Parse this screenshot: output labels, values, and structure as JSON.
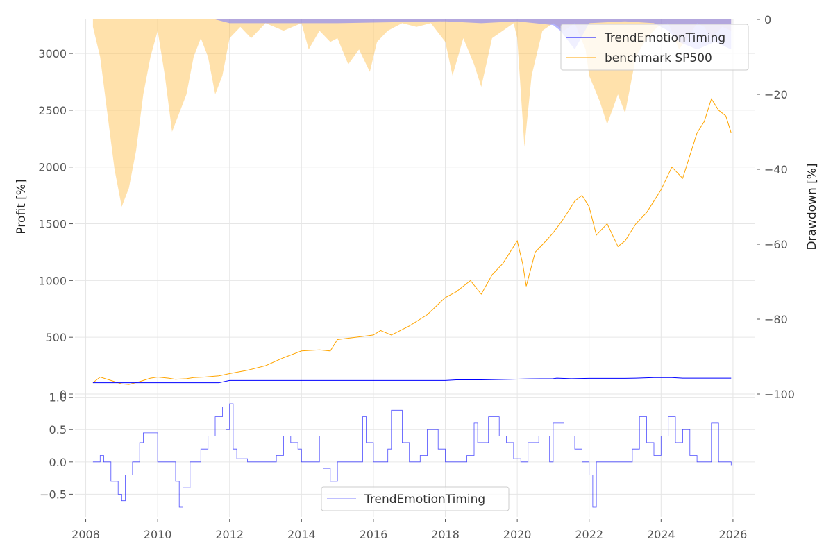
{
  "chart_data": [
    {
      "type": "line",
      "panel": "profit",
      "title": "",
      "ylabel": "Profit [%]",
      "ylim": [
        0,
        3300
      ],
      "yticks": [
        0,
        500,
        1000,
        1500,
        2000,
        2500,
        3000
      ],
      "xlim": [
        2007.7,
        2026.6
      ],
      "series": [
        {
          "name": "TrendEmotionTiming",
          "color": "#0000ff",
          "x": [
            2008.2,
            2009.0,
            2010.0,
            2011.0,
            2011.7,
            2012.0,
            2013.0,
            2014.0,
            2015.0,
            2016.0,
            2017.0,
            2018.0,
            2018.3,
            2019.0,
            2019.8,
            2020.2,
            2021.0,
            2021.1,
            2021.5,
            2022.0,
            2023.0,
            2023.3,
            2023.8,
            2024.3,
            2024.6,
            2025.0,
            2025.5,
            2025.95
          ],
          "values": [
            100,
            100,
            100,
            100,
            100,
            120,
            120,
            120,
            120,
            120,
            120,
            120,
            125,
            125,
            130,
            133,
            135,
            140,
            135,
            138,
            138,
            140,
            145,
            145,
            140,
            140,
            140,
            140
          ]
        },
        {
          "name": "benchmark SP500",
          "color": "#ffa500",
          "x": [
            2008.2,
            2008.4,
            2008.7,
            2009.0,
            2009.2,
            2009.5,
            2009.8,
            2010.0,
            2010.3,
            2010.5,
            2010.8,
            2011.0,
            2011.3,
            2011.7,
            2012.0,
            2012.5,
            2013.0,
            2013.5,
            2014.0,
            2014.5,
            2014.8,
            2015.0,
            2015.5,
            2016.0,
            2016.2,
            2016.5,
            2017.0,
            2017.5,
            2018.0,
            2018.3,
            2018.7,
            2018.9,
            2019.0,
            2019.3,
            2019.6,
            2019.9,
            2020.0,
            2020.15,
            2020.25,
            2020.5,
            2020.8,
            2021.0,
            2021.3,
            2021.6,
            2021.8,
            2022.0,
            2022.2,
            2022.5,
            2022.8,
            2023.0,
            2023.3,
            2023.6,
            2023.8,
            2024.0,
            2024.3,
            2024.6,
            2024.9,
            2025.0,
            2025.2,
            2025.4,
            2025.6,
            2025.8,
            2025.95
          ],
          "values": [
            100,
            150,
            120,
            90,
            85,
            110,
            140,
            150,
            140,
            130,
            135,
            145,
            150,
            160,
            180,
            210,
            250,
            320,
            380,
            390,
            380,
            480,
            500,
            520,
            560,
            520,
            600,
            700,
            850,
            900,
            1000,
            920,
            880,
            1050,
            1150,
            1300,
            1350,
            1150,
            950,
            1250,
            1350,
            1420,
            1550,
            1700,
            1750,
            1650,
            1400,
            1500,
            1300,
            1350,
            1500,
            1600,
            1700,
            1800,
            2000,
            1900,
            2200,
            2300,
            2400,
            2600,
            2500,
            2450,
            2300
          ]
        }
      ]
    },
    {
      "type": "area",
      "panel": "drawdown",
      "ylabel": "Drawdown [%]",
      "ylim": [
        -100,
        0
      ],
      "yticks": [
        0,
        -20,
        -40,
        -60,
        -80,
        -100
      ],
      "series": [
        {
          "name": "benchmark SP500 drawdown",
          "color": "#ffa500",
          "x": [
            2008.2,
            2008.4,
            2008.6,
            2008.8,
            2009.0,
            2009.2,
            2009.4,
            2009.6,
            2009.8,
            2010.0,
            2010.2,
            2010.4,
            2010.6,
            2010.8,
            2011.0,
            2011.2,
            2011.4,
            2011.6,
            2011.8,
            2012.0,
            2012.3,
            2012.6,
            2013.0,
            2013.5,
            2014.0,
            2014.2,
            2014.5,
            2014.8,
            2015.0,
            2015.3,
            2015.6,
            2015.9,
            2016.1,
            2016.4,
            2016.8,
            2017.2,
            2017.6,
            2018.0,
            2018.2,
            2018.5,
            2018.8,
            2019.0,
            2019.3,
            2019.6,
            2019.9,
            2020.0,
            2020.2,
            2020.4,
            2020.7,
            2021.0,
            2021.3,
            2021.6,
            2021.9,
            2022.0,
            2022.3,
            2022.5,
            2022.8,
            2023.0,
            2023.3,
            2023.6,
            2023.9,
            2024.2,
            2024.5,
            2024.8,
            2025.0,
            2025.2,
            2025.4,
            2025.7,
            2025.95
          ],
          "values": [
            -2,
            -10,
            -25,
            -40,
            -50,
            -45,
            -35,
            -20,
            -10,
            -3,
            -15,
            -30,
            -25,
            -20,
            -10,
            -5,
            -10,
            -20,
            -15,
            -5,
            -2,
            -5,
            -1,
            -3,
            -1,
            -8,
            -3,
            -6,
            -5,
            -12,
            -8,
            -14,
            -6,
            -3,
            -1,
            -2,
            -1,
            -6,
            -15,
            -5,
            -12,
            -18,
            -5,
            -3,
            -1,
            -5,
            -34,
            -15,
            -3,
            -1,
            -3,
            -1,
            -8,
            -15,
            -22,
            -28,
            -20,
            -25,
            -10,
            -5,
            -2,
            -1,
            -8,
            -4,
            -1,
            -2,
            -5,
            -2,
            -3
          ]
        },
        {
          "name": "TrendEmotionTiming drawdown",
          "color": "#8080ff",
          "x": [
            2008.2,
            2011.6,
            2012.0,
            2015.0,
            2018.0,
            2019.0,
            2020.0,
            2021.0,
            2021.2,
            2021.6,
            2022.0,
            2023.0,
            2023.8,
            2024.2,
            2024.5,
            2025.0,
            2025.5,
            2025.95
          ],
          "values": [
            0,
            0,
            -1,
            -1,
            -0.5,
            -1,
            -0.5,
            -1.5,
            -3,
            -8,
            -1,
            -0.5,
            -1,
            -3,
            -6,
            -8,
            -6,
            -8
          ]
        }
      ]
    },
    {
      "type": "line",
      "panel": "exposure",
      "ylim": [
        -0.85,
        1.05
      ],
      "yticks": [
        -0.5,
        0.0,
        0.5,
        1.0
      ],
      "series": [
        {
          "name": "TrendEmotionTiming",
          "color": "#0000ff",
          "x": [
            2008.2,
            2008.4,
            2008.5,
            2008.7,
            2008.9,
            2009.0,
            2009.1,
            2009.3,
            2009.5,
            2009.6,
            2010.0,
            2010.4,
            2010.5,
            2010.6,
            2010.7,
            2010.9,
            2011.0,
            2011.2,
            2011.4,
            2011.6,
            2011.8,
            2011.9,
            2012.0,
            2012.1,
            2012.2,
            2012.5,
            2013.0,
            2013.3,
            2013.5,
            2013.7,
            2013.9,
            2014.0,
            2014.3,
            2014.5,
            2014.6,
            2014.8,
            2015.0,
            2015.5,
            2015.7,
            2015.8,
            2016.0,
            2016.4,
            2016.5,
            2016.8,
            2017.0,
            2017.3,
            2017.5,
            2017.8,
            2018.0,
            2018.2,
            2018.6,
            2018.8,
            2018.9,
            2019.2,
            2019.5,
            2019.7,
            2019.9,
            2020.1,
            2020.3,
            2020.6,
            2020.9,
            2021.0,
            2021.3,
            2021.6,
            2021.8,
            2021.9,
            2022.0,
            2022.1,
            2022.2,
            2022.4,
            2022.6,
            2023.0,
            2023.2,
            2023.4,
            2023.6,
            2023.8,
            2024.0,
            2024.2,
            2024.4,
            2024.6,
            2024.8,
            2025.0,
            2025.2,
            2025.4,
            2025.6,
            2025.8,
            2025.95
          ],
          "values": [
            0.0,
            0.1,
            0.0,
            -0.3,
            -0.5,
            -0.6,
            -0.2,
            0.0,
            0.3,
            0.45,
            0.0,
            0.0,
            -0.3,
            -0.7,
            -0.4,
            0.0,
            0.0,
            0.2,
            0.4,
            0.7,
            0.85,
            0.5,
            0.9,
            0.2,
            0.05,
            0.0,
            0.0,
            0.1,
            0.4,
            0.3,
            0.2,
            0.0,
            0.0,
            0.4,
            -0.1,
            -0.3,
            0.0,
            0.0,
            0.7,
            0.3,
            0.0,
            0.2,
            0.8,
            0.3,
            0.0,
            0.1,
            0.5,
            0.2,
            0.0,
            0.0,
            0.1,
            0.6,
            0.3,
            0.7,
            0.4,
            0.3,
            0.05,
            0.0,
            0.3,
            0.4,
            0.0,
            0.6,
            0.4,
            0.2,
            0.0,
            0.0,
            -0.2,
            -0.7,
            0.0,
            0.0,
            0.0,
            0.0,
            0.2,
            0.7,
            0.3,
            0.1,
            0.4,
            0.7,
            0.3,
            0.5,
            0.1,
            0.0,
            0.0,
            0.6,
            0.0,
            0.0,
            -0.05
          ]
        }
      ]
    }
  ],
  "xaxis": {
    "ticks": [
      "2008",
      "2010",
      "2012",
      "2014",
      "2016",
      "2018",
      "2020",
      "2022",
      "2024",
      "2026"
    ]
  },
  "top_legend": [
    "TrendEmotionTiming",
    "benchmark SP500"
  ],
  "bottom_legend": [
    "TrendEmotionTiming"
  ],
  "labels": {
    "profit_ylabel": "Profit [%]",
    "drawdown_ylabel": "Drawdown [%]"
  },
  "colors": {
    "strategy": "#0000ff",
    "benchmark": "#ffa500",
    "strategy_dd": "#8080ff",
    "benchmark_dd": "#ffa500"
  }
}
